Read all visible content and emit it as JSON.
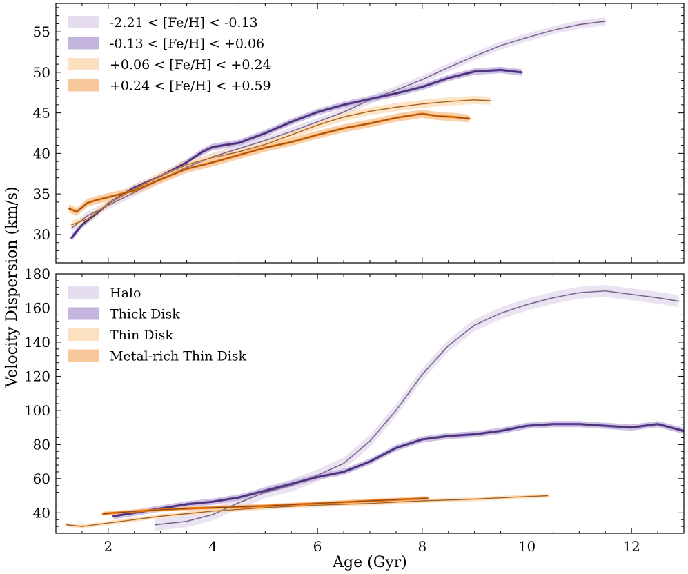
{
  "chart_data": [
    {
      "type": "line",
      "panel": "top",
      "xlabel": "Age (Gyr)",
      "ylabel": "Velocity Dispersion (km/s)",
      "xlim": [
        1.0,
        13.0
      ],
      "ylim": [
        26.5,
        58.5
      ],
      "xticks": [
        2,
        4,
        6,
        8,
        10,
        12
      ],
      "yticks": [
        30,
        35,
        40,
        45,
        50,
        55
      ],
      "ytick_labels": [
        "30",
        "35",
        "40",
        "45",
        "50",
        "55"
      ],
      "legend_position": "upper-left",
      "series": [
        {
          "name": "-2.21 < [Fe/H] < -0.13",
          "color": "#b7a6d3",
          "band_color": "#e6def0",
          "band_halfwidth": 0.5,
          "x": [
            1.3,
            1.6,
            2.0,
            2.5,
            3.0,
            3.5,
            4.0,
            4.5,
            5.0,
            5.5,
            6.0,
            6.5,
            7.0,
            7.5,
            8.0,
            8.5,
            9.0,
            9.5,
            10.0,
            10.5,
            11.0,
            11.5
          ],
          "y": [
            30.8,
            32.3,
            33.6,
            35.2,
            36.8,
            38.3,
            39.6,
            40.6,
            41.6,
            42.7,
            43.9,
            45.1,
            46.6,
            47.8,
            49.1,
            50.6,
            52.0,
            53.3,
            54.3,
            55.2,
            55.9,
            56.3
          ]
        },
        {
          "name": "-0.13 < [Fe/H] < +0.06",
          "color": "#5a3a96",
          "band_color": "#c3b5de",
          "band_halfwidth": 0.4,
          "x": [
            1.3,
            1.5,
            1.8,
            2.0,
            2.5,
            3.0,
            3.5,
            3.8,
            4.0,
            4.5,
            5.0,
            5.5,
            6.0,
            6.5,
            7.0,
            7.5,
            8.0,
            8.5,
            9.0,
            9.5,
            9.9
          ],
          "y": [
            29.6,
            31.2,
            32.7,
            33.8,
            35.8,
            37.2,
            38.9,
            40.2,
            40.8,
            41.3,
            42.5,
            43.9,
            45.1,
            46.0,
            46.7,
            47.4,
            48.2,
            49.3,
            50.1,
            50.3,
            50.0
          ]
        },
        {
          "name": "+0.06 < [Fe/H] < +0.24",
          "color": "#f1a75a",
          "band_color": "#fbe1c0",
          "band_halfwidth": 0.5,
          "x": [
            1.3,
            1.6,
            2.0,
            2.5,
            3.0,
            3.5,
            4.0,
            4.5,
            5.0,
            5.5,
            6.0,
            6.5,
            7.0,
            7.5,
            8.0,
            8.5,
            9.0,
            9.3
          ],
          "y": [
            31.2,
            31.9,
            33.8,
            35.6,
            37.2,
            38.6,
            39.5,
            40.2,
            41.1,
            42.3,
            43.5,
            44.5,
            45.2,
            45.7,
            46.1,
            46.4,
            46.6,
            46.5
          ]
        },
        {
          "name": "+0.24 < [Fe/H] < +0.59",
          "color": "#e8740f",
          "band_color": "#f9c89a",
          "band_halfwidth": 0.5,
          "x": [
            1.25,
            1.4,
            1.6,
            1.8,
            2.0,
            2.5,
            3.0,
            3.5,
            4.0,
            4.5,
            5.0,
            5.5,
            6.0,
            6.5,
            7.0,
            7.5,
            8.0,
            8.3,
            8.6,
            8.9
          ],
          "y": [
            33.2,
            32.8,
            33.9,
            34.3,
            34.6,
            35.4,
            36.8,
            38.1,
            38.9,
            39.8,
            40.7,
            41.4,
            42.3,
            43.1,
            43.7,
            44.4,
            44.9,
            44.6,
            44.5,
            44.3
          ]
        }
      ]
    },
    {
      "type": "line",
      "panel": "bottom",
      "xlabel": "Age (Gyr)",
      "ylabel": "Velocity Dispersion (km/s)",
      "xlim": [
        1.0,
        13.0
      ],
      "ylim": [
        28.0,
        180.0
      ],
      "xticks": [
        2,
        4,
        6,
        8,
        10,
        12
      ],
      "xtick_labels": [
        "2",
        "4",
        "6",
        "8",
        "10",
        "12"
      ],
      "yticks": [
        40,
        60,
        80,
        100,
        120,
        140,
        160,
        180
      ],
      "ytick_labels": [
        "40",
        "60",
        "80",
        "100",
        "120",
        "140",
        "160",
        "180"
      ],
      "legend_position": "upper-left",
      "series": [
        {
          "name": "Halo",
          "color": "#b7a6d3",
          "band_color": "#e6def0",
          "band_halfwidth": 3.5,
          "x": [
            2.9,
            3.5,
            4.0,
            4.5,
            5.0,
            5.5,
            6.0,
            6.5,
            7.0,
            7.5,
            8.0,
            8.5,
            9.0,
            9.5,
            10.0,
            10.5,
            11.0,
            11.5,
            12.0,
            12.5,
            12.9
          ],
          "y": [
            33.0,
            35.0,
            39.0,
            46.0,
            52.0,
            56.0,
            62.0,
            69.0,
            82.0,
            100.0,
            121.0,
            138.0,
            150.0,
            157.0,
            162.0,
            166.0,
            169.0,
            170.0,
            168.0,
            166.0,
            164.0
          ]
        },
        {
          "name": "Thick Disk",
          "color": "#5a3a96",
          "band_color": "#c3b5de",
          "band_halfwidth": 1.8,
          "x": [
            2.1,
            2.5,
            3.0,
            3.5,
            4.0,
            4.5,
            5.0,
            5.5,
            6.0,
            6.5,
            7.0,
            7.5,
            8.0,
            8.5,
            9.0,
            9.5,
            10.0,
            10.5,
            11.0,
            11.5,
            12.0,
            12.5,
            13.0
          ],
          "y": [
            38.0,
            40.0,
            42.5,
            45.0,
            46.5,
            49.0,
            53.0,
            57.0,
            61.0,
            64.0,
            70.0,
            78.0,
            83.0,
            85.0,
            86.0,
            88.0,
            91.0,
            92.0,
            92.0,
            91.0,
            90.0,
            92.0,
            88.0
          ]
        },
        {
          "name": "Thin Disk",
          "color": "#f1a75a",
          "band_color": "#fbe1c0",
          "band_halfwidth": 1.2,
          "x": [
            1.2,
            1.5,
            2.0,
            2.5,
            3.0,
            3.5,
            4.0,
            5.0,
            6.0,
            7.0,
            8.0,
            9.0,
            10.0,
            10.4
          ],
          "y": [
            33.0,
            32.0,
            34.0,
            36.0,
            38.0,
            39.5,
            41.0,
            43.0,
            44.5,
            45.5,
            47.0,
            48.0,
            49.5,
            50.0
          ]
        },
        {
          "name": "Metal-rich Thin Disk",
          "color": "#e8740f",
          "band_color": "#f9c89a",
          "band_halfwidth": 1.2,
          "x": [
            1.9,
            2.5,
            3.0,
            3.5,
            4.0,
            5.0,
            6.0,
            7.0,
            8.1
          ],
          "y": [
            39.5,
            40.8,
            41.8,
            42.5,
            43.0,
            44.0,
            45.5,
            47.0,
            48.5
          ]
        }
      ]
    }
  ]
}
